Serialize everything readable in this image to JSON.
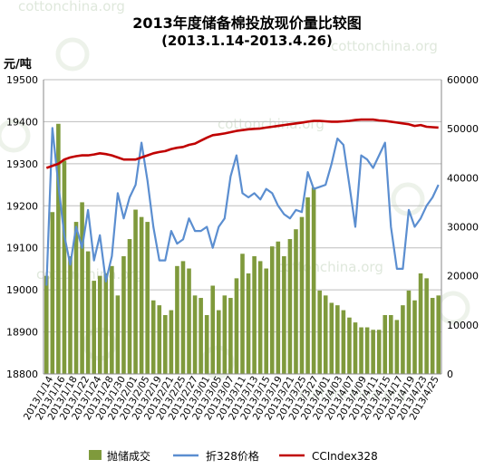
{
  "watermark": {
    "text": "cottonchina.org"
  },
  "chart_data": {
    "type": "bar+line",
    "title": "2013年度储备棉投放现价量比较图",
    "subtitle": "(2013.1.14-2013.4.26)",
    "ylabel_left": "元/吨",
    "ylim_left": [
      18800,
      19500
    ],
    "yticks_left": [
      18800,
      18900,
      19000,
      19100,
      19200,
      19300,
      19400,
      19500
    ],
    "ylim_right": [
      0,
      60000
    ],
    "yticks_right": [
      0,
      10000,
      20000,
      30000,
      40000,
      50000,
      60000
    ],
    "grid": true,
    "legend_placement": "bottom",
    "x_tick_labels": [
      "2013/1/14",
      "2013/1/16",
      "2013/1/18",
      "2013/1/22",
      "2013/1/24",
      "2013/1/28",
      "2013/1/30",
      "2013/2/01",
      "2013/2/05",
      "2013/2/19",
      "2013/2/21",
      "2013/2/25",
      "2013/2/27",
      "2013/3/01",
      "2013/3/05",
      "2013/3/07",
      "2013/3/11",
      "2013/3/13",
      "2013/3/15",
      "2013/3/19",
      "2013/3/21",
      "2013/3/25",
      "2013/3/27",
      "2013/4/01",
      "2013/4/03",
      "2013/4/07",
      "2013/4/09",
      "2013/4/11",
      "2013/4/15",
      "2013/4/17",
      "2013/4/19",
      "2013/4/23",
      "2013/4/25"
    ],
    "series": [
      {
        "name": "抛储成交",
        "type": "bar",
        "axis": "right",
        "color": "#7f9a3c",
        "values": [
          20000,
          33000,
          51000,
          43500,
          24000,
          31000,
          35000,
          25000,
          19000,
          20000,
          20500,
          22000,
          16000,
          24000,
          27500,
          33500,
          32000,
          31000,
          15000,
          14000,
          12000,
          13000,
          22000,
          23000,
          21500,
          16000,
          15500,
          12000,
          18000,
          13000,
          16000,
          15500,
          19500,
          24500,
          20500,
          24000,
          23000,
          21500,
          26000,
          27000,
          24000,
          27500,
          29500,
          32000,
          36000,
          38000,
          17000,
          16000,
          14500,
          14000,
          13000,
          11500,
          10500,
          9500,
          9500,
          9000,
          9000,
          12000,
          12000,
          11000,
          14000,
          17000,
          15000,
          20500,
          19500,
          15500,
          16000
        ]
      },
      {
        "name": "折328价格",
        "type": "line",
        "axis": "left",
        "color": "#5b8ed0",
        "values": [
          19010,
          19385,
          19250,
          19130,
          19060,
          19150,
          19100,
          19190,
          19070,
          19130,
          19020,
          19080,
          19230,
          19170,
          19220,
          19250,
          19350,
          19260,
          19150,
          19070,
          19070,
          19140,
          19110,
          19120,
          19170,
          19140,
          19140,
          19150,
          19100,
          19150,
          19170,
          19270,
          19320,
          19230,
          19220,
          19230,
          19215,
          19240,
          19230,
          19200,
          19180,
          19170,
          19190,
          19185,
          19280,
          19240,
          19245,
          19250,
          19300,
          19360,
          19345,
          19250,
          19150,
          19320,
          19310,
          19290,
          19320,
          19350,
          19150,
          19050,
          19050,
          19190,
          19150,
          19170,
          19200,
          19220,
          19250
        ]
      },
      {
        "name": "CCIndex328",
        "type": "line",
        "axis": "left",
        "color": "#c00000",
        "values": [
          19290,
          19295,
          19300,
          19310,
          19315,
          19318,
          19320,
          19320,
          19322,
          19325,
          19323,
          19320,
          19315,
          19310,
          19310,
          19310,
          19315,
          19320,
          19325,
          19328,
          19330,
          19335,
          19338,
          19340,
          19345,
          19348,
          19355,
          19362,
          19368,
          19370,
          19372,
          19375,
          19378,
          19380,
          19382,
          19383,
          19384,
          19386,
          19388,
          19390,
          19392,
          19394,
          19396,
          19398,
          19400,
          19402,
          19402,
          19401,
          19400,
          19400,
          19401,
          19402,
          19404,
          19405,
          19405,
          19405,
          19403,
          19402,
          19400,
          19398,
          19396,
          19394,
          19390,
          19392,
          19388,
          19387,
          19386
        ]
      }
    ]
  }
}
